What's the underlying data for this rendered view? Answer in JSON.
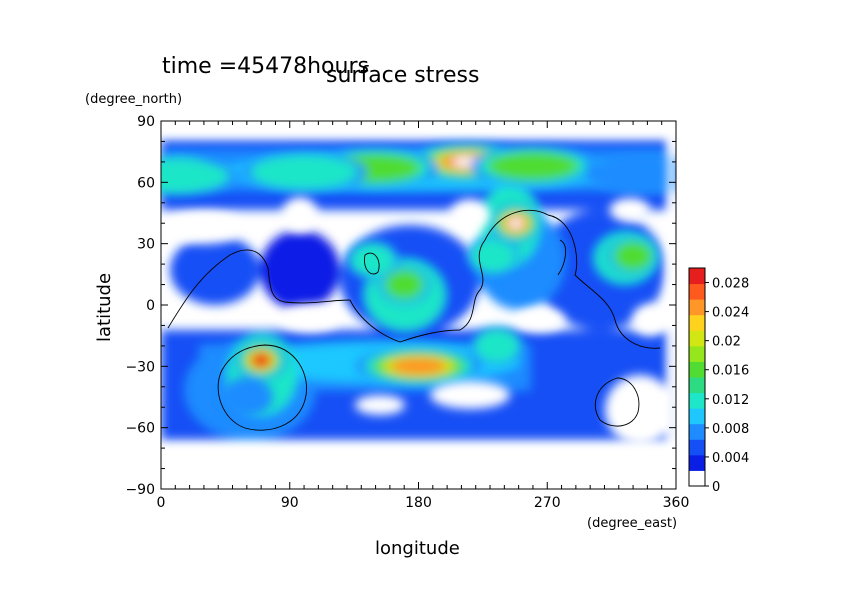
{
  "chart_data": {
    "type": "heatmap",
    "time_label": "time =45478hours",
    "title": "surface stress",
    "xlabel": "longitude",
    "ylabel": "latitude",
    "x_units": "(degree_east)",
    "y_units": "(degree_north)",
    "xlim": [
      0,
      360
    ],
    "ylim": [
      -90,
      90
    ],
    "x_ticks": [
      "0",
      "90",
      "180",
      "270",
      "360"
    ],
    "y_ticks": [
      "90",
      "60",
      "30",
      "0",
      "−30",
      "−60",
      "−90"
    ],
    "colorbar": {
      "min": 0,
      "max": 0.03,
      "ticks": [
        "0.028",
        "0.024",
        "0.02",
        "0.016",
        "0.012",
        "0.008",
        "0.004",
        "0"
      ],
      "colors": [
        "#ffffff",
        "#0a1ee6",
        "#1450f5",
        "#1e8cff",
        "#1ec8ff",
        "#1ee6c8",
        "#2ddc82",
        "#50dc32",
        "#96e61e",
        "#d2e614",
        "#ffd21e",
        "#ff9628",
        "#ff5a1e",
        "#e61e1e"
      ]
    },
    "features": [
      {
        "lon": 215,
        "lat": 70,
        "value": 0.03
      },
      {
        "lon": 260,
        "lat": 68,
        "value": 0.018
      },
      {
        "lon": 150,
        "lat": 67,
        "value": 0.016
      },
      {
        "lon": 100,
        "lat": 65,
        "value": 0.012
      },
      {
        "lon": 10,
        "lat": 63,
        "value": 0.012
      },
      {
        "lon": 340,
        "lat": 64,
        "value": 0.01
      },
      {
        "lon": 248,
        "lat": 40,
        "value": 0.03
      },
      {
        "lon": 330,
        "lat": 24,
        "value": 0.016
      },
      {
        "lon": 170,
        "lat": 10,
        "value": 0.018
      },
      {
        "lon": 232,
        "lat": 24,
        "value": 0.014
      },
      {
        "lon": 148,
        "lat": 22,
        "value": 0.012
      },
      {
        "lon": 70,
        "lat": -27,
        "value": 0.028
      },
      {
        "lon": 180,
        "lat": -30,
        "value": 0.024
      },
      {
        "lon": 235,
        "lat": -20,
        "value": 0.014
      },
      {
        "lon": 60,
        "lat": -45,
        "value": 0.01
      }
    ]
  }
}
